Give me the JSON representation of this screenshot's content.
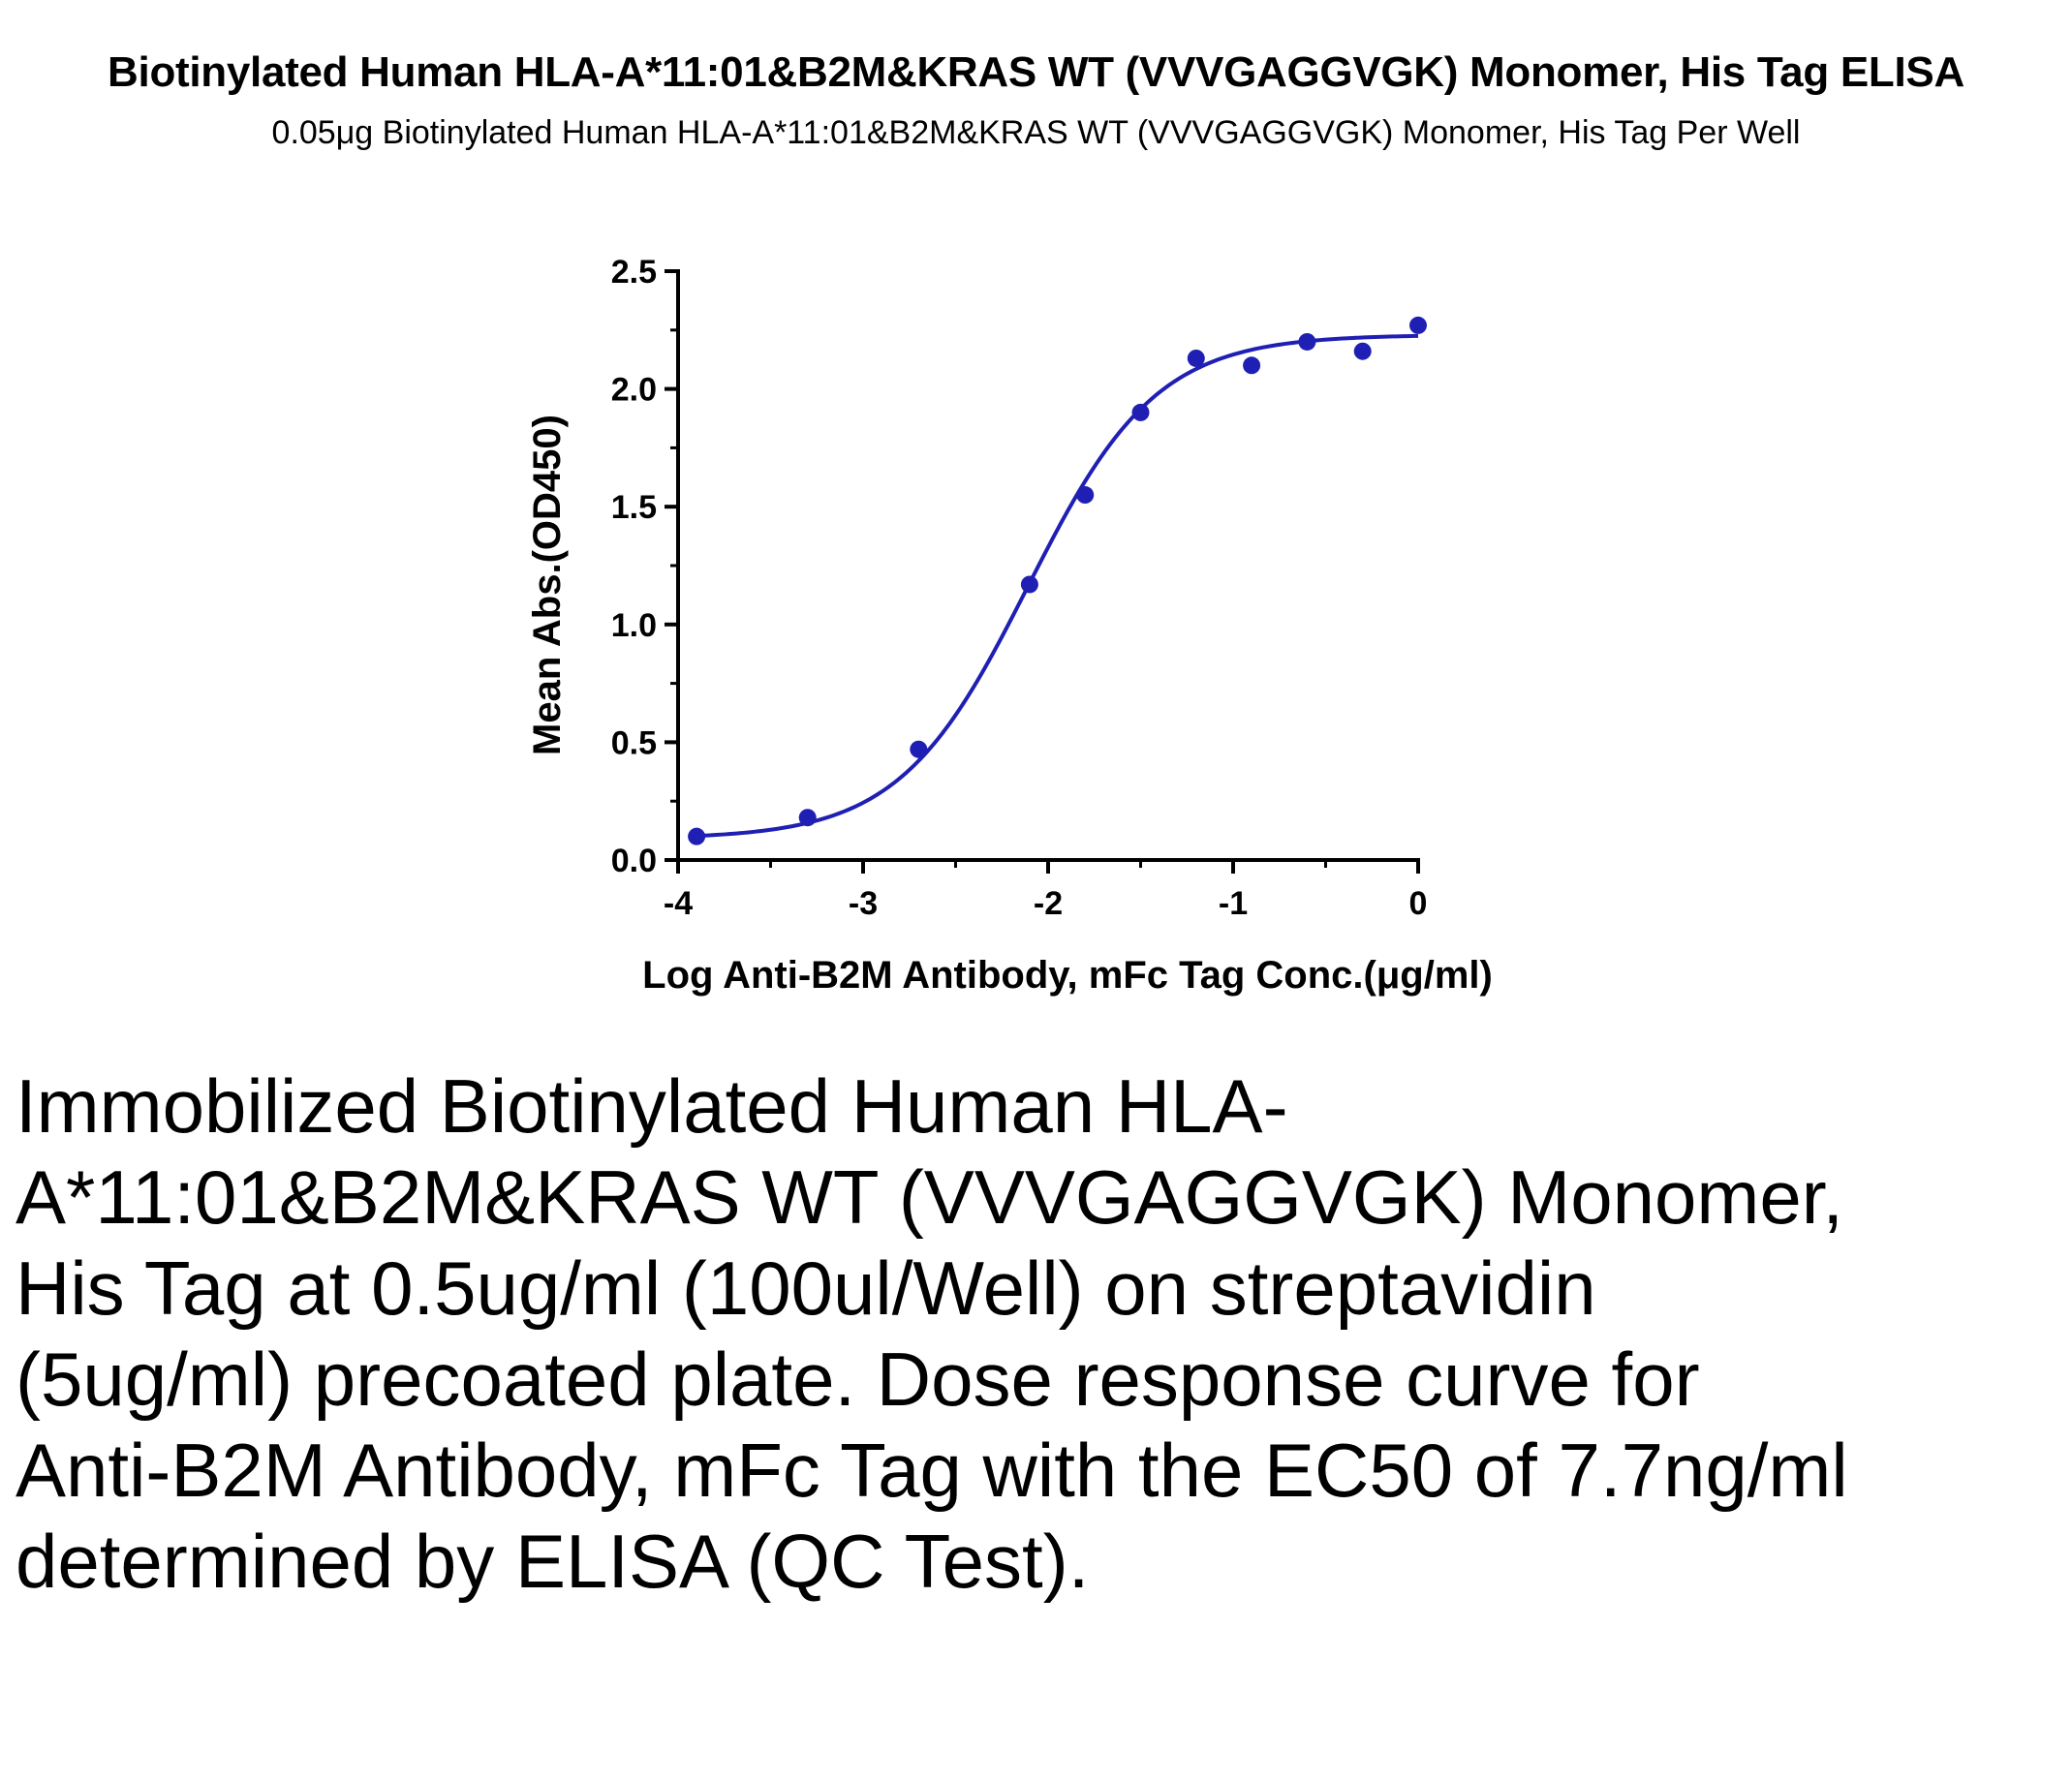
{
  "header": {
    "title": "Biotinylated Human HLA-A*11:01&B2M&KRAS WT (VVVGAGGVGK) Monomer, His Tag ELISA",
    "subtitle": "0.05μg Biotinylated Human HLA-A*11:01&B2M&KRAS WT (VVVGAGGVGK) Monomer, His Tag Per Well"
  },
  "caption": "Immobilized Biotinylated Human HLA-A*11:01&B2M&KRAS WT (VVVGAGGVGK) Monomer, His Tag at 0.5ug/ml (100ul/Well) on streptavidin (5ug/ml) precoated plate. Dose response curve for Anti-B2M Antibody, mFc Tag with the EC50 of 7.7ng/ml determined by ELISA (QC Test).",
  "colors": {
    "series": "#1f1fb4",
    "axis": "#000000"
  },
  "chart_data": {
    "type": "scatter",
    "title": "Biotinylated Human HLA-A*11:01&B2M&KRAS WT (VVVGAGGVGK) Monomer, His Tag ELISA",
    "subtitle": "0.05μg Biotinylated Human HLA-A*11:01&B2M&KRAS WT (VVVGAGGVGK) Monomer, His Tag Per Well",
    "xlabel": "Log Anti-B2M Antibody, mFc Tag Conc.(μg/ml)",
    "ylabel": "Mean Abs.(OD450)",
    "xlim": [
      -4,
      0
    ],
    "ylim": [
      0,
      2.5
    ],
    "xticks": [
      "-4",
      "-3",
      "-2",
      "-1",
      "0"
    ],
    "yticks": [
      "0.0",
      "0.5",
      "1.0",
      "1.5",
      "2.0",
      "2.5"
    ],
    "grid": false,
    "series": [
      {
        "x": [
          -3.9,
          -3.3,
          -2.7,
          -2.1,
          -1.8,
          -1.5,
          -1.2,
          -0.9,
          -0.6,
          -0.3,
          0.0
        ],
        "y": [
          0.1,
          0.18,
          0.47,
          1.17,
          1.55,
          1.9,
          2.13,
          2.1,
          2.2,
          2.16,
          2.27
        ]
      }
    ],
    "fit": {
      "model": "4PL",
      "bottom": 0.09,
      "top": 2.23,
      "log_ec50": -2.11,
      "hill_slope": 1.25
    }
  }
}
